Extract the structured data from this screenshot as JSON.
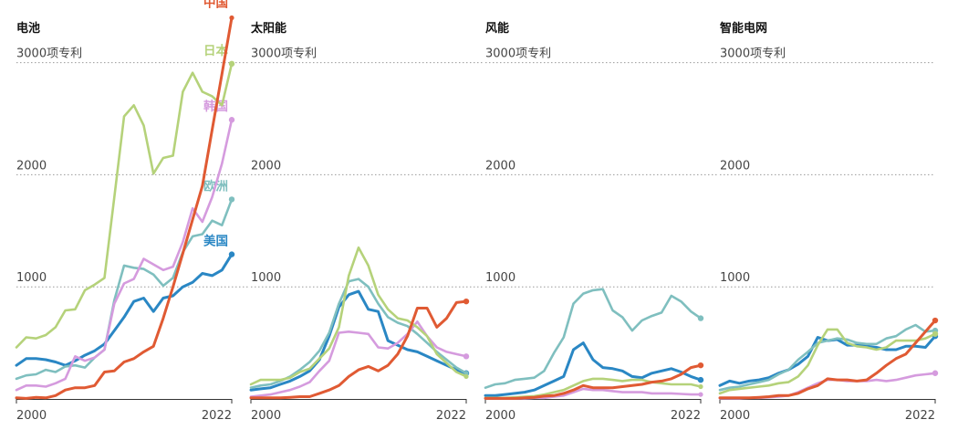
{
  "chart_data": [
    {
      "type": "line",
      "title": "电池",
      "x": [
        2000,
        2001,
        2002,
        2003,
        2004,
        2005,
        2006,
        2007,
        2008,
        2009,
        2010,
        2011,
        2012,
        2013,
        2014,
        2015,
        2016,
        2017,
        2018,
        2019,
        2020,
        2021,
        2022
      ],
      "xtick_labels": [
        "2000",
        "2022"
      ],
      "ytick_labels": [
        "1000",
        "2000",
        "3000项专利"
      ],
      "ylim": [
        0,
        3400
      ],
      "legend_position": "line-end labels",
      "series": [
        {
          "name": "中国",
          "color": "#e05a33",
          "end_marker": false,
          "values": [
            10,
            5,
            15,
            10,
            30,
            80,
            100,
            100,
            120,
            240,
            250,
            330,
            360,
            420,
            470,
            720,
            1000,
            1300,
            1600,
            1900,
            2400,
            2900,
            3400
          ]
        },
        {
          "name": "日本",
          "color": "#b5d27a",
          "end_marker": true,
          "values": [
            460,
            550,
            540,
            570,
            640,
            790,
            800,
            970,
            1020,
            1080,
            1800,
            2520,
            2620,
            2440,
            2010,
            2150,
            2170,
            2740,
            2910,
            2740,
            2700,
            2620,
            2990
          ]
        },
        {
          "name": "韩国",
          "color": "#d59bde",
          "end_marker": true,
          "values": [
            80,
            120,
            120,
            110,
            140,
            180,
            380,
            340,
            370,
            440,
            850,
            1030,
            1070,
            1250,
            1200,
            1150,
            1180,
            1400,
            1700,
            1580,
            1800,
            2100,
            2490
          ]
        },
        {
          "name": "欧洲",
          "color": "#7fbfbf",
          "end_marker": true,
          "values": [
            180,
            210,
            220,
            260,
            240,
            290,
            300,
            280,
            370,
            440,
            880,
            1190,
            1170,
            1160,
            1110,
            1010,
            1080,
            1310,
            1450,
            1470,
            1590,
            1550,
            1780
          ]
        },
        {
          "name": "美国",
          "color": "#2a87c4",
          "end_marker": true,
          "values": [
            300,
            360,
            360,
            350,
            330,
            300,
            340,
            390,
            430,
            490,
            610,
            730,
            870,
            900,
            780,
            900,
            920,
            1000,
            1040,
            1120,
            1100,
            1150,
            1290
          ]
        }
      ]
    },
    {
      "type": "line",
      "title": "太阳能",
      "x": [
        2000,
        2001,
        2002,
        2003,
        2004,
        2005,
        2006,
        2007,
        2008,
        2009,
        2010,
        2011,
        2012,
        2013,
        2014,
        2015,
        2016,
        2017,
        2018,
        2019,
        2020,
        2021,
        2022
      ],
      "xtick_labels": [
        "2000",
        "2022"
      ],
      "ytick_labels": [
        "1000",
        "2000",
        "3000项专利"
      ],
      "ylim": [
        0,
        3400
      ],
      "series": [
        {
          "name": "中国",
          "color": "#e05a33",
          "end_marker": true,
          "values": [
            10,
            10,
            10,
            10,
            15,
            20,
            20,
            50,
            80,
            120,
            200,
            260,
            290,
            250,
            300,
            400,
            560,
            810,
            810,
            640,
            720,
            860,
            870
          ]
        },
        {
          "name": "日本",
          "color": "#b5d27a",
          "end_marker": false,
          "values": [
            130,
            170,
            170,
            170,
            190,
            240,
            270,
            360,
            450,
            640,
            1100,
            1350,
            1190,
            930,
            800,
            720,
            700,
            640,
            560,
            400,
            320,
            240,
            200
          ]
        },
        {
          "name": "韩国",
          "color": "#d59bde",
          "end_marker": true,
          "values": [
            20,
            30,
            40,
            60,
            80,
            110,
            150,
            250,
            340,
            590,
            600,
            590,
            580,
            460,
            450,
            500,
            580,
            690,
            560,
            460,
            420,
            400,
            380
          ]
        },
        {
          "name": "欧洲",
          "color": "#7fbfbf",
          "end_marker": false,
          "values": [
            100,
            120,
            130,
            160,
            200,
            260,
            330,
            430,
            590,
            850,
            1050,
            1070,
            1000,
            850,
            730,
            680,
            650,
            580,
            500,
            420,
            350,
            280,
            230
          ]
        },
        {
          "name": "美国",
          "color": "#2a87c4",
          "end_marker": true,
          "values": [
            80,
            90,
            100,
            130,
            160,
            200,
            250,
            350,
            560,
            820,
            930,
            960,
            800,
            780,
            520,
            480,
            440,
            420,
            380,
            340,
            300,
            260,
            230
          ]
        }
      ]
    },
    {
      "type": "line",
      "title": "风能",
      "x": [
        2000,
        2001,
        2002,
        2003,
        2004,
        2005,
        2006,
        2007,
        2008,
        2009,
        2010,
        2011,
        2012,
        2013,
        2014,
        2015,
        2016,
        2017,
        2018,
        2019,
        2020,
        2021,
        2022
      ],
      "xtick_labels": [
        "2000",
        "2022"
      ],
      "ytick_labels": [
        "1000",
        "2000",
        "3000项专利"
      ],
      "ylim": [
        0,
        3400
      ],
      "series": [
        {
          "name": "中国",
          "color": "#e05a33",
          "end_marker": true,
          "values": [
            5,
            5,
            5,
            5,
            10,
            15,
            25,
            30,
            50,
            80,
            120,
            100,
            100,
            100,
            110,
            120,
            130,
            150,
            160,
            180,
            220,
            280,
            300
          ]
        },
        {
          "name": "日本",
          "color": "#b5d27a",
          "end_marker": false,
          "values": [
            10,
            10,
            10,
            15,
            20,
            25,
            40,
            60,
            80,
            120,
            160,
            180,
            180,
            170,
            160,
            170,
            170,
            150,
            140,
            130,
            130,
            130,
            110
          ]
        },
        {
          "name": "韩国",
          "color": "#d59bde",
          "end_marker": false,
          "values": [
            5,
            5,
            5,
            5,
            5,
            10,
            10,
            20,
            30,
            60,
            90,
            80,
            80,
            70,
            60,
            60,
            60,
            50,
            50,
            50,
            45,
            40,
            40
          ]
        },
        {
          "name": "欧洲",
          "color": "#7fbfbf",
          "end_marker": true,
          "values": [
            100,
            130,
            140,
            170,
            180,
            190,
            250,
            410,
            550,
            850,
            940,
            970,
            980,
            790,
            730,
            610,
            700,
            740,
            770,
            920,
            870,
            780,
            720
          ]
        },
        {
          "name": "美国",
          "color": "#2a87c4",
          "end_marker": true,
          "values": [
            30,
            30,
            40,
            50,
            60,
            80,
            120,
            160,
            200,
            440,
            500,
            350,
            280,
            270,
            250,
            200,
            190,
            230,
            250,
            270,
            240,
            200,
            170
          ]
        }
      ]
    },
    {
      "type": "line",
      "title": "智能电网",
      "x": [
        2000,
        2001,
        2002,
        2003,
        2004,
        2005,
        2006,
        2007,
        2008,
        2009,
        2010,
        2011,
        2012,
        2013,
        2014,
        2015,
        2016,
        2017,
        2018,
        2019,
        2020,
        2021,
        2022
      ],
      "xtick_labels": [
        "2000",
        "2022"
      ],
      "ytick_labels": [
        "1000",
        "2000",
        "3000项专利"
      ],
      "ylim": [
        0,
        3400
      ],
      "series": [
        {
          "name": "中国",
          "color": "#e05a33",
          "end_marker": true,
          "values": [
            10,
            10,
            10,
            10,
            15,
            20,
            30,
            30,
            50,
            90,
            120,
            180,
            170,
            170,
            160,
            170,
            230,
            300,
            360,
            400,
            500,
            600,
            700
          ]
        },
        {
          "name": "日本",
          "color": "#b5d27a",
          "end_marker": true,
          "values": [
            50,
            80,
            90,
            100,
            110,
            120,
            140,
            150,
            200,
            300,
            480,
            620,
            620,
            500,
            470,
            460,
            440,
            460,
            520,
            520,
            520,
            540,
            580
          ]
        },
        {
          "name": "韩国",
          "color": "#d59bde",
          "end_marker": true,
          "values": [
            5,
            5,
            5,
            10,
            10,
            15,
            20,
            30,
            60,
            100,
            140,
            170,
            170,
            160,
            160,
            160,
            170,
            160,
            170,
            190,
            210,
            220,
            230
          ]
        },
        {
          "name": "欧洲",
          "color": "#7fbfbf",
          "end_marker": true,
          "values": [
            80,
            100,
            110,
            130,
            150,
            170,
            220,
            260,
            350,
            420,
            500,
            520,
            540,
            530,
            500,
            490,
            490,
            540,
            560,
            620,
            660,
            600,
            610
          ]
        },
        {
          "name": "美国",
          "color": "#2a87c4",
          "end_marker": true,
          "values": [
            120,
            160,
            140,
            160,
            170,
            190,
            230,
            260,
            310,
            380,
            550,
            520,
            530,
            480,
            480,
            470,
            460,
            440,
            440,
            470,
            470,
            460,
            560
          ]
        }
      ]
    }
  ]
}
